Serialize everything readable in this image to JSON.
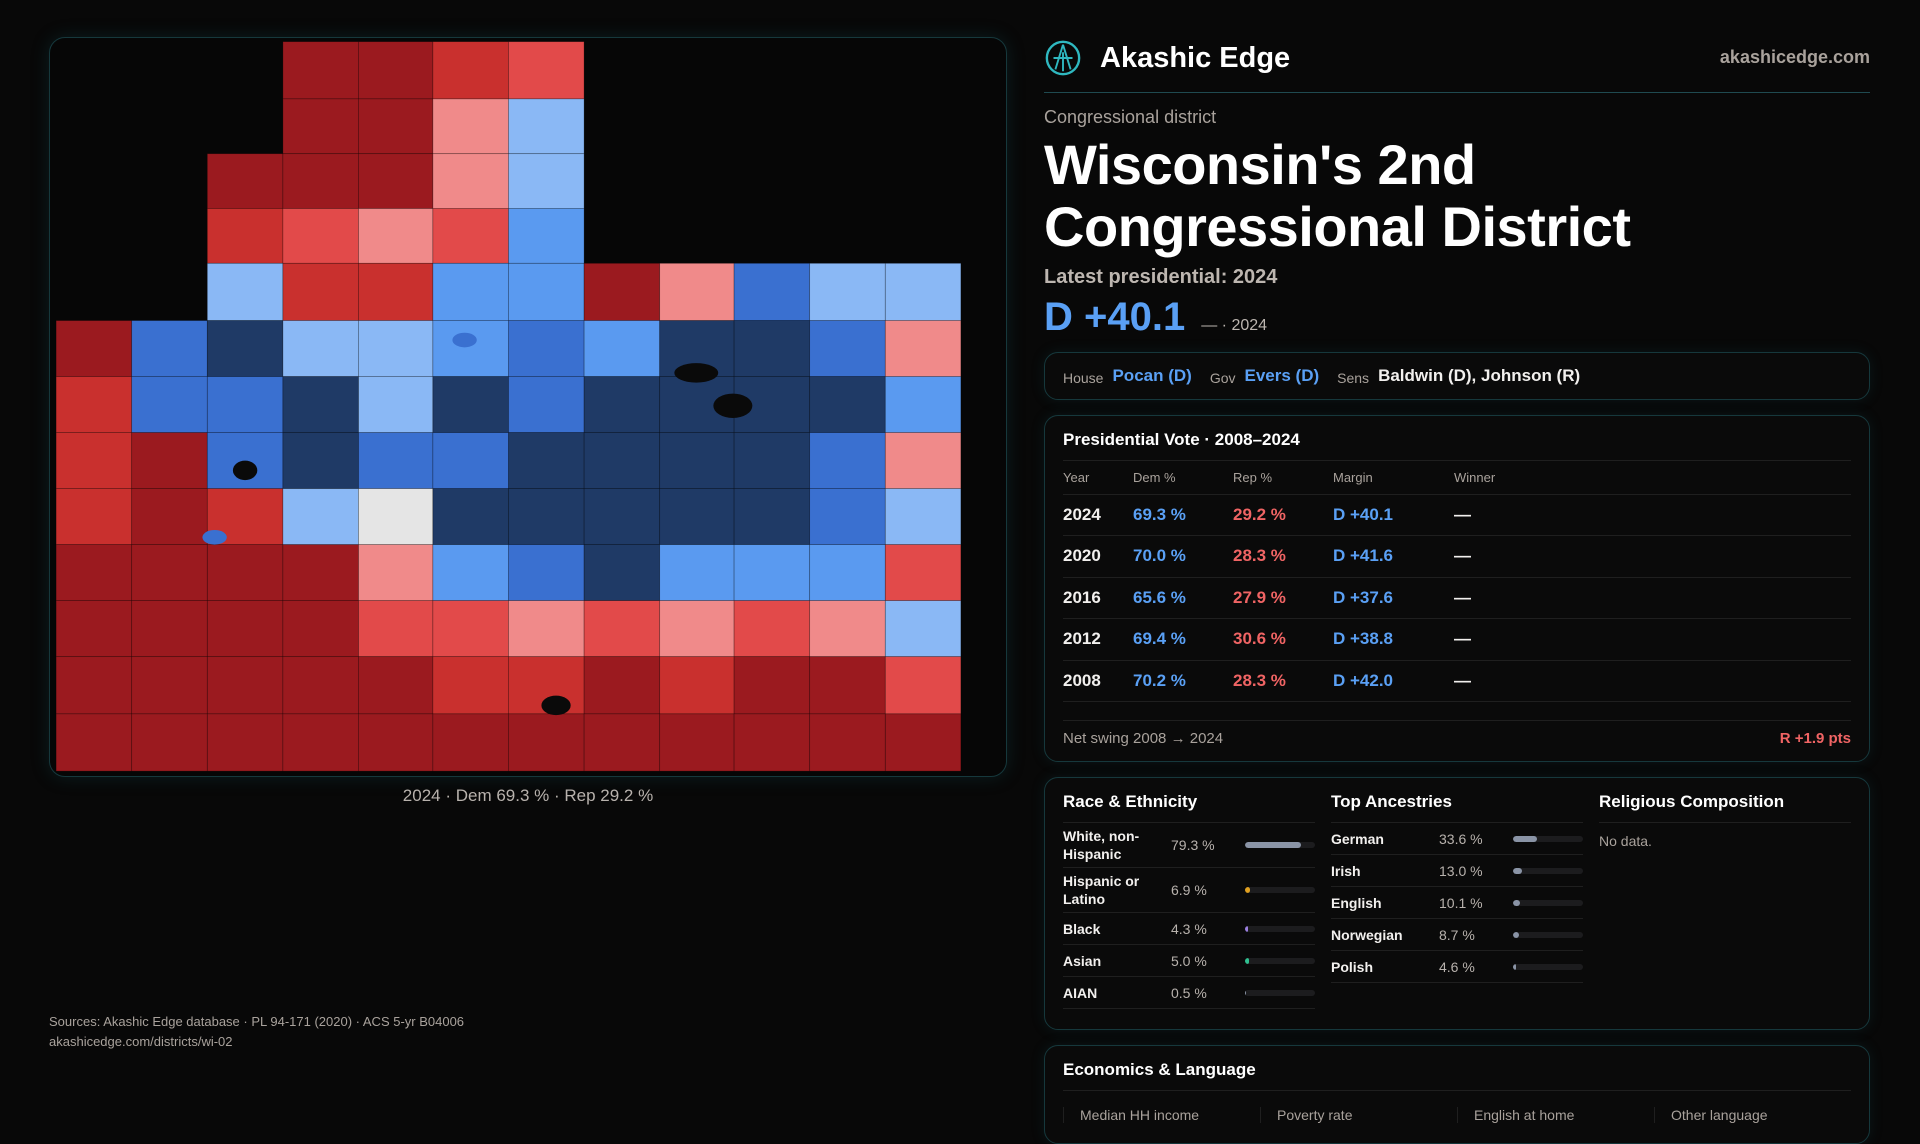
{
  "brand": {
    "name": "Akashic Edge",
    "domain": "akashicedge.com",
    "logo_icon": "akashic-logo-icon",
    "accent": "#2fb8c0"
  },
  "header": {
    "kicker": "Congressional district",
    "title": "Wisconsin's 2nd Congressional District",
    "latest": "Latest presidential: 2024",
    "margin": "D +40.1",
    "margin_sub": "— · 2024"
  },
  "officials": [
    {
      "label": "House",
      "value": "Pocan (D)",
      "party": "D"
    },
    {
      "label": "Gov",
      "value": "Evers (D)",
      "party": "D"
    },
    {
      "label": "Sens",
      "value": "Baldwin (D), Johnson (R)",
      "party": ""
    }
  ],
  "presidential": {
    "title": "Presidential Vote · 2008–2024",
    "columns": [
      "Year",
      "Dem %",
      "Rep %",
      "Margin",
      "Winner"
    ],
    "rows": [
      [
        "2024",
        "69.3 %",
        "29.2 %",
        "D +40.1",
        "—"
      ],
      [
        "2020",
        "70.0 %",
        "28.3 %",
        "D +41.6",
        "—"
      ],
      [
        "2016",
        "65.6 %",
        "27.9 %",
        "D +37.6",
        "—"
      ],
      [
        "2012",
        "69.4 %",
        "30.6 %",
        "D +38.8",
        "—"
      ],
      [
        "2008",
        "70.2 %",
        "28.3 %",
        "D +42.0",
        "—"
      ]
    ],
    "swing_label": "Net swing 2008 → 2024",
    "swing_value": "R +1.9 pts"
  },
  "race": {
    "title": "Race & Ethnicity",
    "rows": [
      {
        "name": "White, non-Hispanic",
        "pct": "79.3 %",
        "value": 79.3,
        "color": "#8a94a6"
      },
      {
        "name": "Hispanic or Latino",
        "pct": "6.9 %",
        "value": 6.9,
        "color": "#e0a020"
      },
      {
        "name": "Black",
        "pct": "4.3 %",
        "value": 4.3,
        "color": "#9b7fe0"
      },
      {
        "name": "Asian",
        "pct": "5.0 %",
        "value": 5.0,
        "color": "#30c090"
      },
      {
        "name": "AIAN",
        "pct": "0.5 %",
        "value": 0.5,
        "color": "#8a94a6"
      }
    ]
  },
  "ancestry": {
    "title": "Top Ancestries",
    "rows": [
      {
        "name": "German",
        "pct": "33.6 %",
        "value": 33.6
      },
      {
        "name": "Irish",
        "pct": "13.0 %",
        "value": 13.0
      },
      {
        "name": "English",
        "pct": "10.1 %",
        "value": 10.1
      },
      {
        "name": "Norwegian",
        "pct": "8.7 %",
        "value": 8.7
      },
      {
        "name": "Polish",
        "pct": "4.6 %",
        "value": 4.6
      }
    ]
  },
  "religion": {
    "title": "Religious Composition",
    "empty": "No data."
  },
  "economics": {
    "title": "Economics & Language",
    "cells": [
      "Median HH income",
      "Poverty rate",
      "English at home",
      "Other language"
    ]
  },
  "sources": {
    "line1": "Sources: Akashic Edge database · PL 94-171 (2020) · ACS 5-yr B04006",
    "line2": "akashicedge.com/districts/wi-02"
  },
  "map": {
    "caption": "2024 · Dem 69.3 % · Rep 29.2 %",
    "colors": {
      "safe_r": "#9b1a1f",
      "likely_r": "#c9302e",
      "lean_r": "#e24a4a",
      "tilt_r": "#f08a8a",
      "tilt_d": "#8ab8f5",
      "lean_d": "#5a9af0",
      "likely_d": "#3a70d0",
      "safe_d": "#1f3a66",
      "tossup": "#e5e5e5"
    }
  }
}
